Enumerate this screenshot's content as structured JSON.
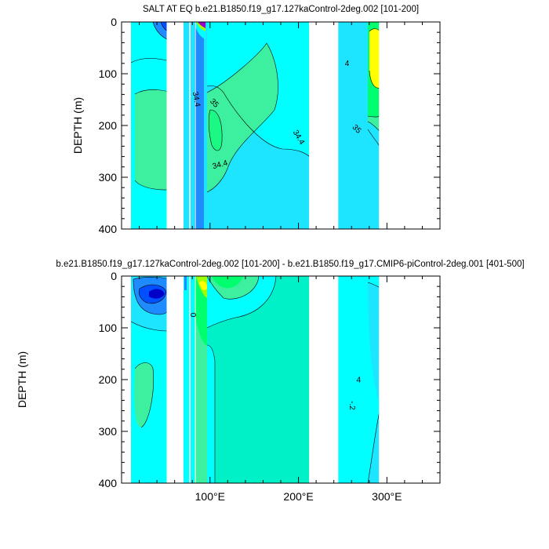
{
  "colors": {
    "c1": "#00ffff",
    "c2": "#1ee5ff",
    "c3": "#00f0c8",
    "c4": "#3cf0a0",
    "c5": "#00ff6e",
    "c6": "#a0ff00",
    "c7": "#ffff00",
    "c8": "#1e8cff",
    "c9": "#0050ff",
    "c10": "#0000c8",
    "c11": "#9600c8",
    "c12": "#a000a0",
    "land": "#ffffff"
  },
  "chart_data": [
    {
      "type": "heatmap",
      "title": "SALT AT EQ b.e21.B1850.f19_g17.127kaControl-2deg.002 [101-200]",
      "xlabel": "",
      "ylabel": "DEPTH (m)",
      "xlim": [
        0,
        360
      ],
      "ylim": [
        400,
        0
      ],
      "y_ticks": [
        0,
        100,
        200,
        300,
        400
      ],
      "y_tick_labels": [
        "0",
        "100",
        "200",
        "300",
        "400"
      ],
      "x_ticks": [
        100,
        200,
        300
      ],
      "x_tick_labels": [],
      "land_gaps_lon": [
        [
          51,
          70
        ],
        [
          76.5,
          78
        ],
        [
          83,
          83.5
        ],
        [
          212,
          245
        ],
        [
          291,
          360
        ]
      ],
      "contour_labels": [
        {
          "text": "34.4",
          "lon": 82,
          "depth": 150,
          "angle": 80
        },
        {
          "text": "35",
          "lon": 103,
          "depth": 160,
          "angle": 45
        },
        {
          "text": "34.4",
          "lon": 198,
          "depth": 225,
          "angle": 60
        },
        {
          "text": "34.4",
          "lon": 112,
          "depth": 280,
          "angle": -15
        },
        {
          "text": "35",
          "lon": 264,
          "depth": 210,
          "angle": 45
        },
        {
          "text": "4",
          "lon": 255,
          "depth": 85,
          "angle": 0
        }
      ]
    },
    {
      "type": "heatmap",
      "title": "b.e21.B1850.f19_g17.127kaControl-2deg.002 [101-200] - b.e21.B1850.f19_g17.CMIP6-piControl-2deg.001 [401-500]",
      "xlabel": "",
      "ylabel": "DEPTH (m)",
      "xlim": [
        0,
        360
      ],
      "ylim": [
        400,
        0
      ],
      "y_ticks": [
        0,
        100,
        200,
        300,
        400
      ],
      "y_tick_labels": [
        "0",
        "100",
        "200",
        "300",
        "400"
      ],
      "x_ticks": [
        100,
        200,
        300
      ],
      "x_tick_labels": [
        "100°E",
        "200°E",
        "300°E"
      ],
      "land_gaps_lon": [
        [
          51,
          70
        ],
        [
          76.5,
          78
        ],
        [
          83,
          83.5
        ],
        [
          212,
          245
        ],
        [
          291,
          360
        ]
      ],
      "contour_labels": [
        {
          "text": "0",
          "lon": 78,
          "depth": 75,
          "angle": 90
        },
        {
          "text": "-.2",
          "lon": 258,
          "depth": 250,
          "angle": 90
        },
        {
          "text": "4",
          "lon": 268,
          "depth": 205,
          "angle": 0
        }
      ]
    }
  ]
}
